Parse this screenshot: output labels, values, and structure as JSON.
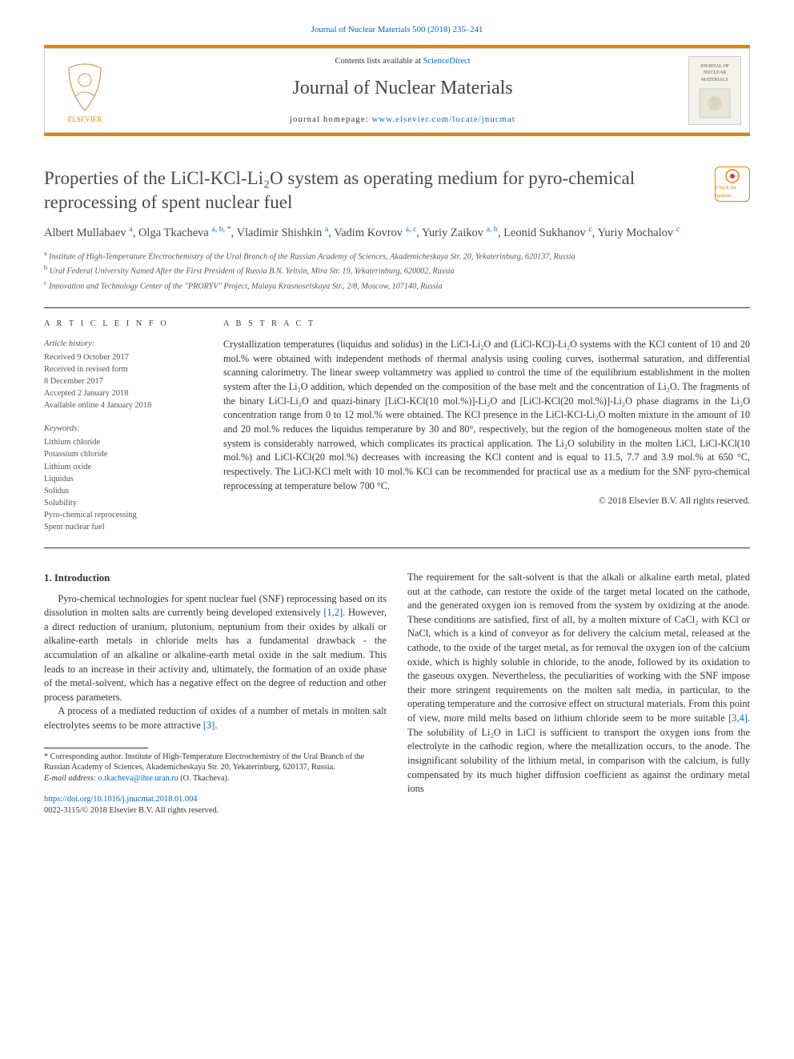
{
  "colors": {
    "link": "#0066cc",
    "accent": "#e98300",
    "text": "#333333",
    "muted": "#555555",
    "rule": "#333333",
    "border": "#cccccc",
    "bg": "#ffffff"
  },
  "header": {
    "citation": "Journal of Nuclear Materials 500 (2018) 235–241",
    "contents_avail": "Contents lists available at ",
    "contents_link": "ScienceDirect",
    "journal_name": "Journal of Nuclear Materials",
    "homepage_label": "journal homepage: ",
    "homepage_url": "www.elsevier.com/locate/jnucmat",
    "publisher": "ELSEVIER",
    "cover_text": "JOURNAL OF NUCLEAR MATERIALS",
    "updates_label": "Check for updates"
  },
  "title": "Properties of the LiCl-KCl-Li₂O system as operating medium for pyro-chemical reprocessing of spent nuclear fuel",
  "authors_html": "Albert Mullabaev <sup>a</sup>, Olga Tkacheva <sup>a, b, *</sup>, Vladimir Shishkin <sup>a</sup>, Vadim Kovrov <sup>a, c</sup>, Yuriy Zaikov <sup>a, b</sup>, Leonid Sukhanov <sup>c</sup>, Yuriy Mochalov <sup>c</sup>",
  "affils": [
    {
      "sup": "a",
      "text": "Institute of High-Temperature Electrochemistry of the Ural Branch of the Russian Academy of Sciences, Akademicheskaya Str. 20, Yekaterinburg, 620137, Russia"
    },
    {
      "sup": "b",
      "text": "Ural Federal University Named After the First President of Russia B.N. Yeltsin, Mira Str. 19, Yekaterinburg, 620002, Russia"
    },
    {
      "sup": "c",
      "text": "Innovation and Technology Center of the \"PRORYV\" Project, Malaya Krasnoselskaya Str., 2/8, Moscow, 107140, Russia"
    }
  ],
  "article_info": {
    "header": "A R T I C L E   I N F O",
    "history_label": "Article history:",
    "history": [
      "Received 9 October 2017",
      "Received in revised form\n8 December 2017",
      "Accepted 2 January 2018",
      "Available online 4 January 2018"
    ],
    "keywords_label": "Keywords:",
    "keywords": [
      "Lithium chloride",
      "Potassium chloride",
      "Lithium oxide",
      "Liquidus",
      "Solidus",
      "Solubility",
      "Pyro-chemical reprocessing",
      "Spent nuclear fuel"
    ]
  },
  "abstract": {
    "header": "A B S T R A C T",
    "text": "Crystallization temperatures (liquidus and solidus) in the LiCl-Li₂O and (LiCl-KCl)-Li₂O systems with the KCl content of 10 and 20 mol.% were obtained with independent methods of thermal analysis using cooling curves, isothermal saturation, and differential scanning calorimetry. The linear sweep voltammetry was applied to control the time of the equilibrium establishment in the molten system after the Li₂O addition, which depended on the composition of the base melt and the concentration of Li₂O. The fragments of the binary LiCl-Li₂O and quazi-binary [LiCl-KCl(10 mol.%)]-Li₂O and [LiCl-KCl(20 mol.%)]-Li₂O phase diagrams in the Li₂O concentration range from 0 to 12 mol.% were obtained. The KCl presence in the LiCl-KCl-Li₂O molten mixture in the amount of 10 and 20 mol.% reduces the liquidus temperature by 30 and 80°, respectively, but the region of the homogeneous molten state of the system is considerably narrowed, which complicates its practical application. The Li₂O solubility in the molten LiCl, LiCl-KCl(10 mol.%) and LiCl-KCl(20 mol.%) decreases with increasing the KCl content and is equal to 11.5, 7.7 and 3.9 mol.% at 650 °C, respectively. The LiCl-KCl melt with 10 mol.% KCl can be recommended for practical use as a medium for the SNF pyro-chemical reprocessing at temperature below 700 °C.",
    "copyright": "© 2018 Elsevier B.V. All rights reserved."
  },
  "body": {
    "section_num": "1.",
    "section_title": "Introduction",
    "left_paras": [
      "Pyro-chemical technologies for spent nuclear fuel (SNF) reprocessing based on its dissolution in molten salts are currently being developed extensively [1,2]. However, a direct reduction of uranium, plutonium, neptunium from their oxides by alkali or alkaline-earth metals in chloride melts has a fundamental drawback - the accumulation of an alkaline or alkaline-earth metal oxide in the salt medium. This leads to an increase in their activity and, ultimately, the formation of an oxide phase of the metal-solvent, which has a negative effect on the degree of reduction and other process parameters.",
      "A process of a mediated reduction of oxides of a number of metals in molten salt electrolytes seems to be more attractive [3]."
    ],
    "right_para": "The requirement for the salt-solvent is that the alkali or alkaline earth metal, plated out at the cathode, can restore the oxide of the target metal located on the cathode, and the generated oxygen ion is removed from the system by oxidizing at the anode. These conditions are satisfied, first of all, by a molten mixture of CaCl₂ with KCl or NaCl, which is a kind of conveyor as for delivery the calcium metal, released at the cathode, to the oxide of the target metal, as for removal the oxygen ion of the calcium oxide, which is highly soluble in chloride, to the anode, followed by its oxidation to the gaseous oxygen. Nevertheless, the peculiarities of working with the SNF impose their more stringent requirements on the molten salt media, in particular, to the operating temperature and the corrosive effect on structural materials. From this point of view, more mild melts based on lithium chloride seem to be more suitable [3,4]. The solubility of Li₂O in LiCl is sufficient to transport the oxygen ions from the electrolyte in the cathodic region, where the metallization occurs, to the anode. The insignificant solubility of the lithium metal, in comparison with the calcium, is fully compensated by its much higher diffusion coefficient as against the ordinary metal ions"
  },
  "footnote": {
    "star": "* Corresponding author. Institute of High-Temperature Electrochemistry of the Ural Branch of the Russian Academy of Sciences, Akademicheskaya Str. 20, Yekaterinburg, 620137, Russia.",
    "email_label": "E-mail address: ",
    "email": "o.tkacheva@ihte.uran.ru",
    "email_who": " (O. Tkacheva)."
  },
  "doi": {
    "url": "https://doi.org/10.1016/j.jnucmat.2018.01.004",
    "issn_line": "0022-3115/© 2018 Elsevier B.V. All rights reserved."
  }
}
